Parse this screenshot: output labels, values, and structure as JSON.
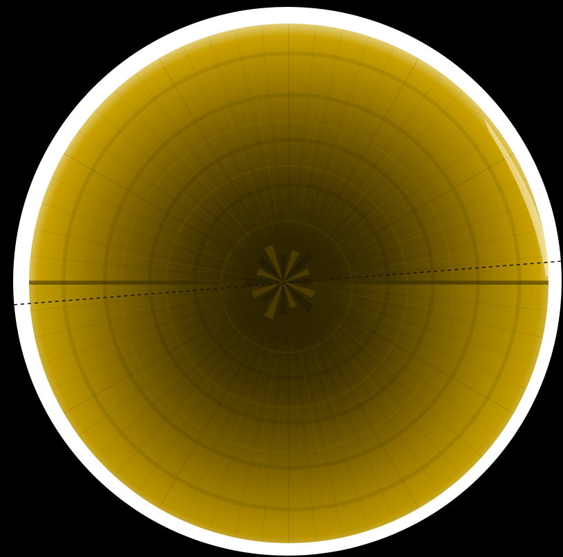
{
  "image": {
    "subject": "polar-projected-planetary-disk",
    "colors": {
      "background": "#000000",
      "limb": "#ffffff",
      "disk_bright": "#c9a100",
      "disk_mid": "#8d6e00",
      "disk_dark": "#2e2400",
      "guide_line": "#1a1400"
    }
  }
}
